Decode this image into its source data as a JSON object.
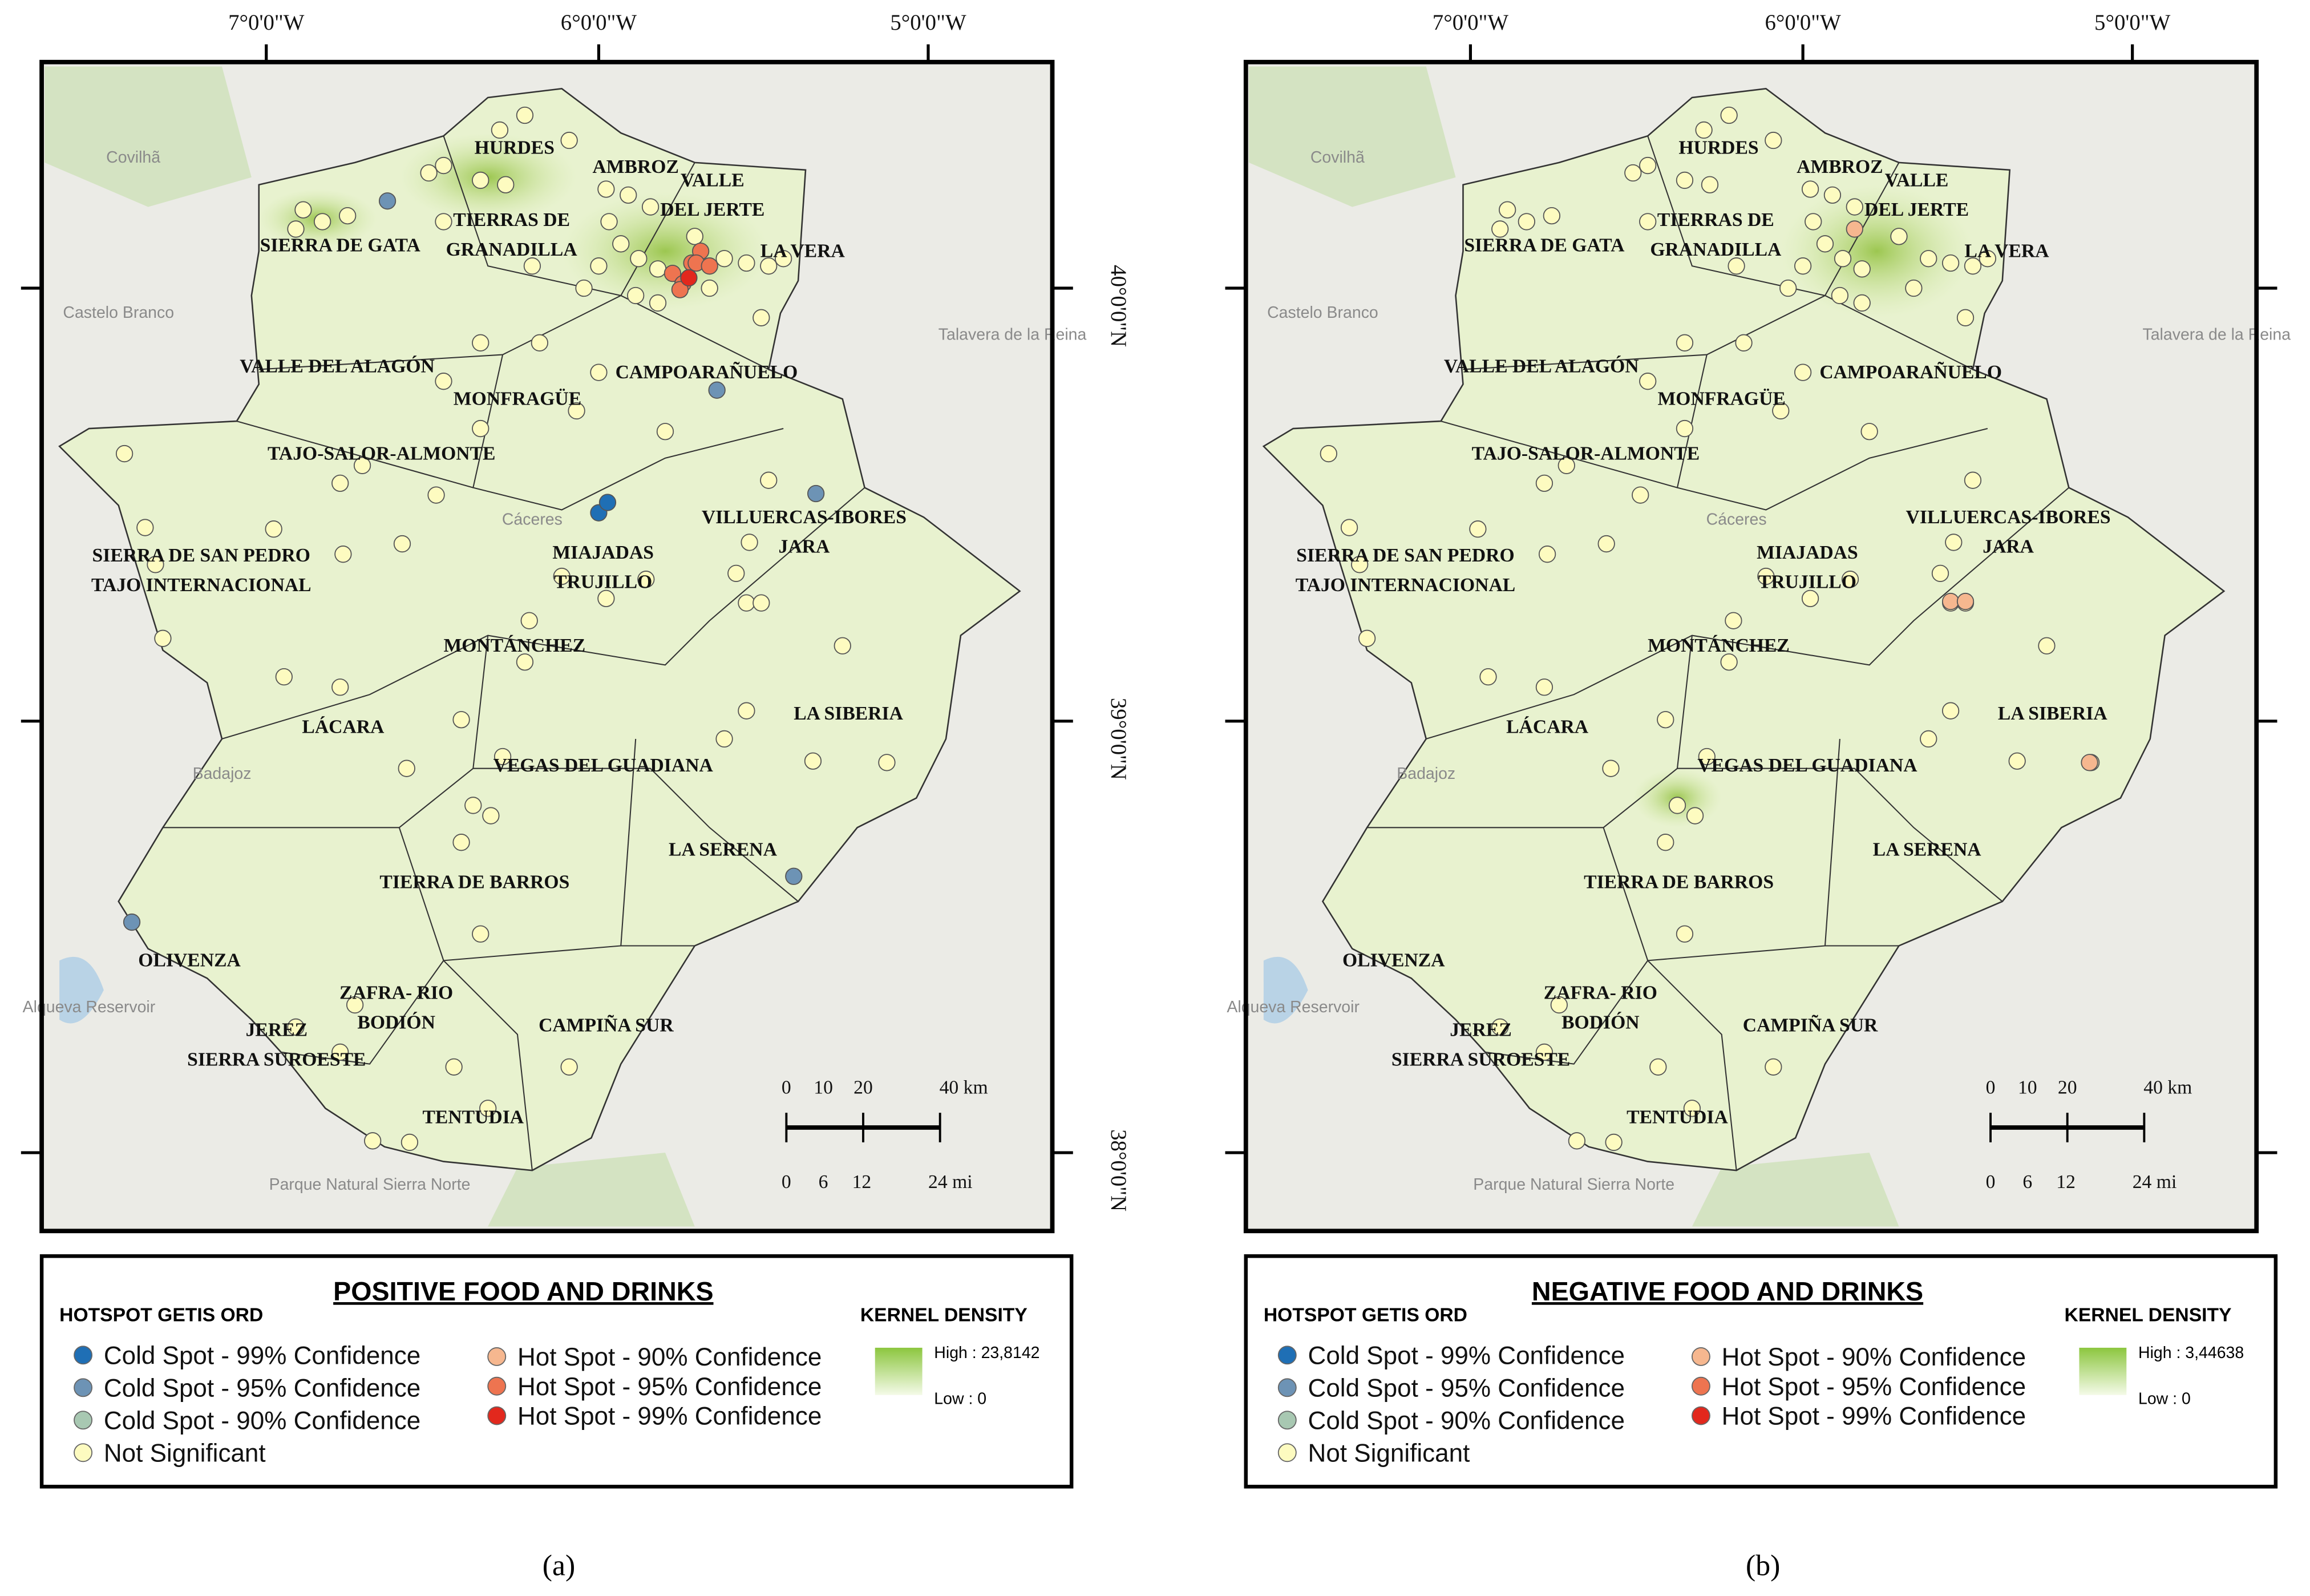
{
  "panels": [
    {
      "caption": "(a)",
      "legend_title": "POSITIVE FOOD AND DRINKS",
      "kernel_high": "High : 23,8142",
      "kernel_low": "Low : 0"
    },
    {
      "caption": "(b)",
      "legend_title": "NEGATIVE FOOD AND DRINKS",
      "kernel_high": "High : 3,44638",
      "kernel_low": "Low : 0"
    }
  ],
  "hotspot_title": "HOTSPOT GETIS ORD",
  "kernel_title": "KERNEL DENSITY",
  "legend_items": [
    "Cold Spot - 99% Confidence",
    "Cold Spot - 95% Confidence",
    "Cold Spot - 90% Confidence",
    "Not Significant",
    "Hot Spot - 90% Confidence",
    "Hot Spot - 95% Confidence",
    "Hot Spot - 99% Confidence"
  ],
  "lon_labels": [
    "7°0'0\"W",
    "6°0'0\"W",
    "5°0'0\"W"
  ],
  "lat_labels": [
    "40°0'0\"N",
    "39°0'0\"N",
    "38°0'0\"N"
  ],
  "scale_km": [
    "0",
    "10",
    "20",
    "40 km"
  ],
  "scale_mi": [
    "0",
    "6",
    "12",
    "24 mi"
  ],
  "regions": [
    [
      "HURDES"
    ],
    [
      "AMBROZ"
    ],
    [
      "VALLE",
      "DEL JERTE"
    ],
    [
      "SIERRA DE GATA"
    ],
    [
      "TIERRAS DE",
      "GRANADILLA"
    ],
    [
      "LA VERA"
    ],
    [
      "VALLE DEL ALAGÓN"
    ],
    [
      "CAMPOARAÑUELO"
    ],
    [
      "MONFRAGÜE"
    ],
    [
      "TAJO-SALOR-ALMONTE"
    ],
    [
      "VILLUERCAS-IBORES",
      "JARA"
    ],
    [
      "SIERRA DE SAN PEDRO",
      "TAJO INTERNACIONAL"
    ],
    [
      "MIAJADAS",
      "TRUJILLO"
    ],
    [
      "MONTÁNCHEZ"
    ],
    [
      "LA SIBERIA"
    ],
    [
      "LÁCARA"
    ],
    [
      "VEGAS DEL GUADIANA"
    ],
    [
      "LA SERENA"
    ],
    [
      "TIERRA DE BARROS"
    ],
    [
      "OLIVENZA"
    ],
    [
      "ZAFRA- RIO",
      "BODIÓN"
    ],
    [
      "JEREZ",
      "SIERRA SUROESTE"
    ],
    [
      "CAMPIÑA SUR"
    ],
    [
      "TENTUDIA"
    ]
  ],
  "base_labels": [
    "Covilhã",
    "Castelo Branco",
    "Cáceres",
    "Badajoz",
    "Talavera de la Reina",
    "Alqueva Reservoir",
    "Parque Natural Sierra Norte"
  ]
}
